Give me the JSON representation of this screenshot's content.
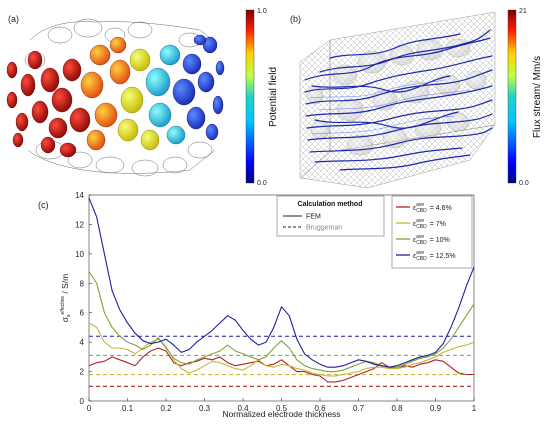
{
  "panel_a": {
    "label": "(a)",
    "colorbar": {
      "title": "Potential field",
      "max_label": "1.0",
      "min_label": "0.0"
    }
  },
  "panel_b": {
    "label": "(b)",
    "colorbar": {
      "title": "Flux stream/ Mm/s",
      "max_label": "21",
      "min_label": "0.0"
    }
  },
  "panel_c": {
    "label": "(c)"
  },
  "colors": {
    "red": "#b22222",
    "yellow": "#c9b43c",
    "green": "#7fa33a",
    "blue": "#1f1f9e",
    "jet_top": "#7f0000",
    "jet_mid": "#22d3c5",
    "jet_bottom": "#00007f"
  },
  "chart_data": {
    "type": "line",
    "xlabel": "Normalized electrode thickness",
    "ylabel": "σ_s^effective / S/m",
    "ylabel_parts": {
      "sigma": "σ",
      "sub": "s",
      "sup": "effective",
      "unit": " / S/m"
    },
    "xlim": [
      0,
      1
    ],
    "ylim": [
      0,
      14
    ],
    "xticks": [
      "0",
      "0.1",
      "0.2",
      "0.3",
      "0.4",
      "0.5",
      "0.6",
      "0.7",
      "0.8",
      "0.9",
      "1"
    ],
    "yticks": [
      "0",
      "2",
      "4",
      "6",
      "8",
      "10",
      "12",
      "14"
    ],
    "legend": {
      "method_title": "Calculation method",
      "method_fem": "FEM",
      "method_bruggeman": "Bruggeman",
      "series_prefix": "ε",
      "series_sup": "ave",
      "series_sub": "CBD",
      "series_labels": [
        "= 4.6%",
        "= 7%",
        "= 10%",
        "= 12.5%"
      ]
    },
    "series": [
      {
        "key": "red",
        "bruggeman": 1.0,
        "x": [
          0,
          0.02,
          0.04,
          0.06,
          0.08,
          0.1,
          0.12,
          0.14,
          0.16,
          0.18,
          0.2,
          0.22,
          0.24,
          0.26,
          0.28,
          0.3,
          0.32,
          0.34,
          0.36,
          0.38,
          0.4,
          0.42,
          0.44,
          0.46,
          0.48,
          0.5,
          0.52,
          0.54,
          0.56,
          0.58,
          0.6,
          0.62,
          0.64,
          0.66,
          0.68,
          0.7,
          0.72,
          0.74,
          0.76,
          0.78,
          0.8,
          0.82,
          0.84,
          0.86,
          0.88,
          0.9,
          0.92,
          0.94,
          0.96,
          0.98,
          1.0
        ],
        "y": [
          2.4,
          2.6,
          2.7,
          3.0,
          2.8,
          2.6,
          2.4,
          3.0,
          3.4,
          3.6,
          3.4,
          2.6,
          2.4,
          2.6,
          2.7,
          2.9,
          2.8,
          3.0,
          2.6,
          2.4,
          2.5,
          2.6,
          2.7,
          2.4,
          2.5,
          2.8,
          2.4,
          2.0,
          2.0,
          1.8,
          1.7,
          1.3,
          1.3,
          1.4,
          1.6,
          1.8,
          2.0,
          2.2,
          2.6,
          2.3,
          2.2,
          2.4,
          2.3,
          2.5,
          2.6,
          2.8,
          2.7,
          2.3,
          1.9,
          1.8,
          1.8
        ]
      },
      {
        "key": "yellow",
        "bruggeman": 1.8,
        "x": [
          0,
          0.02,
          0.04,
          0.06,
          0.08,
          0.1,
          0.12,
          0.14,
          0.16,
          0.18,
          0.2,
          0.22,
          0.24,
          0.26,
          0.28,
          0.3,
          0.32,
          0.34,
          0.36,
          0.38,
          0.4,
          0.42,
          0.44,
          0.46,
          0.48,
          0.5,
          0.52,
          0.54,
          0.56,
          0.58,
          0.6,
          0.62,
          0.64,
          0.66,
          0.68,
          0.7,
          0.72,
          0.74,
          0.76,
          0.78,
          0.8,
          0.82,
          0.84,
          0.86,
          0.88,
          0.9,
          0.92,
          0.94,
          0.96,
          0.98,
          1.0
        ],
        "y": [
          5.3,
          5.0,
          4.0,
          3.6,
          3.6,
          3.5,
          3.2,
          3.6,
          4.0,
          4.2,
          3.7,
          2.8,
          2.2,
          1.9,
          2.1,
          2.4,
          2.7,
          2.6,
          2.4,
          2.2,
          2.1,
          2.4,
          2.8,
          2.4,
          2.3,
          2.5,
          2.4,
          2.2,
          2.1,
          1.9,
          1.8,
          1.7,
          1.7,
          1.8,
          1.9,
          2.0,
          2.2,
          2.3,
          2.3,
          2.2,
          2.2,
          2.3,
          2.5,
          2.6,
          2.8,
          3.0,
          3.3,
          3.5,
          3.7,
          3.8,
          4.0
        ]
      },
      {
        "key": "green",
        "bruggeman": 3.1,
        "x": [
          0,
          0.02,
          0.04,
          0.06,
          0.08,
          0.1,
          0.12,
          0.14,
          0.16,
          0.18,
          0.2,
          0.22,
          0.24,
          0.26,
          0.28,
          0.3,
          0.32,
          0.34,
          0.36,
          0.38,
          0.4,
          0.42,
          0.44,
          0.46,
          0.48,
          0.5,
          0.52,
          0.54,
          0.56,
          0.58,
          0.6,
          0.62,
          0.64,
          0.66,
          0.68,
          0.7,
          0.72,
          0.74,
          0.76,
          0.78,
          0.8,
          0.82,
          0.84,
          0.86,
          0.88,
          0.9,
          0.92,
          0.94,
          0.96,
          0.98,
          1.0
        ],
        "y": [
          8.8,
          8.0,
          6.0,
          5.0,
          4.4,
          4.0,
          3.8,
          3.5,
          3.8,
          4.3,
          3.6,
          2.9,
          2.6,
          2.5,
          2.8,
          3.0,
          3.2,
          3.4,
          3.8,
          3.4,
          3.2,
          3.0,
          2.8,
          3.0,
          3.6,
          4.1,
          3.6,
          2.8,
          2.4,
          2.2,
          2.1,
          2.0,
          2.0,
          2.1,
          2.3,
          2.5,
          2.7,
          2.6,
          2.4,
          2.3,
          2.3,
          2.5,
          2.7,
          2.9,
          3.0,
          3.2,
          3.6,
          4.2,
          5.0,
          5.8,
          6.6
        ]
      },
      {
        "key": "blue",
        "bruggeman": 4.4,
        "x": [
          0,
          0.02,
          0.04,
          0.06,
          0.08,
          0.1,
          0.12,
          0.14,
          0.16,
          0.18,
          0.2,
          0.22,
          0.24,
          0.26,
          0.28,
          0.3,
          0.32,
          0.34,
          0.36,
          0.38,
          0.4,
          0.42,
          0.44,
          0.46,
          0.48,
          0.5,
          0.52,
          0.54,
          0.56,
          0.58,
          0.6,
          0.62,
          0.64,
          0.66,
          0.68,
          0.7,
          0.72,
          0.74,
          0.76,
          0.78,
          0.8,
          0.82,
          0.84,
          0.86,
          0.88,
          0.9,
          0.92,
          0.94,
          0.96,
          0.98,
          1.0
        ],
        "y": [
          13.8,
          12.5,
          10.0,
          7.5,
          6.2,
          5.3,
          4.6,
          4.1,
          3.9,
          4.0,
          4.2,
          3.8,
          3.3,
          3.5,
          4.0,
          4.4,
          4.8,
          5.3,
          5.8,
          5.5,
          4.8,
          4.2,
          3.8,
          4.0,
          5.0,
          6.4,
          5.8,
          4.2,
          3.2,
          2.8,
          2.5,
          2.3,
          2.3,
          2.4,
          2.6,
          2.8,
          2.7,
          2.5,
          2.4,
          2.3,
          2.4,
          2.6,
          2.8,
          3.0,
          3.1,
          3.3,
          3.9,
          5.0,
          6.3,
          7.8,
          9.1
        ]
      }
    ]
  }
}
